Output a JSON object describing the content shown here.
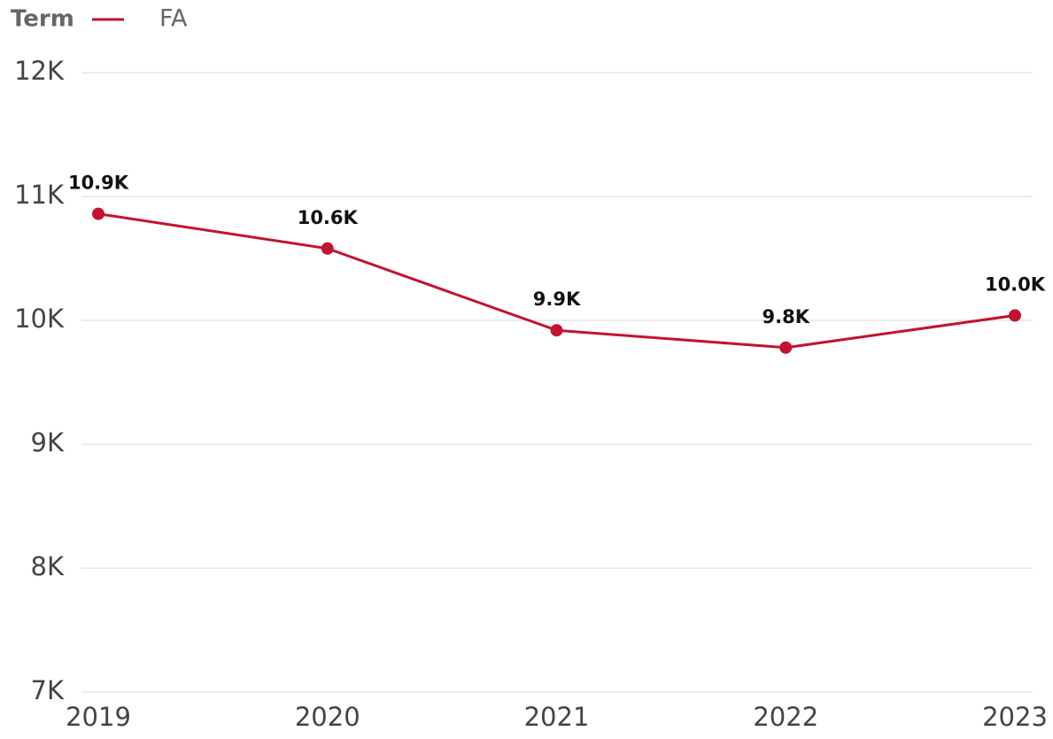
{
  "chart_data": {
    "type": "line",
    "legend_title": "Term",
    "categories": [
      "2019",
      "2020",
      "2021",
      "2022",
      "2023"
    ],
    "series": [
      {
        "name": "FA",
        "color": "#c41230",
        "values": [
          10860,
          10580,
          9920,
          9780,
          10040
        ],
        "value_labels": [
          "10.9K",
          "10.6K",
          "9.9K",
          "9.8K",
          "10.0K"
        ]
      }
    ],
    "ylim": [
      7000,
      12000
    ],
    "yticks": [
      {
        "value": 7000,
        "label": "7K"
      },
      {
        "value": 8000,
        "label": "8K"
      },
      {
        "value": 9000,
        "label": "9K"
      },
      {
        "value": 10000,
        "label": "10K"
      },
      {
        "value": 11000,
        "label": "11K"
      },
      {
        "value": 12000,
        "label": "12K"
      }
    ],
    "grid": true,
    "legend": "top-left"
  }
}
